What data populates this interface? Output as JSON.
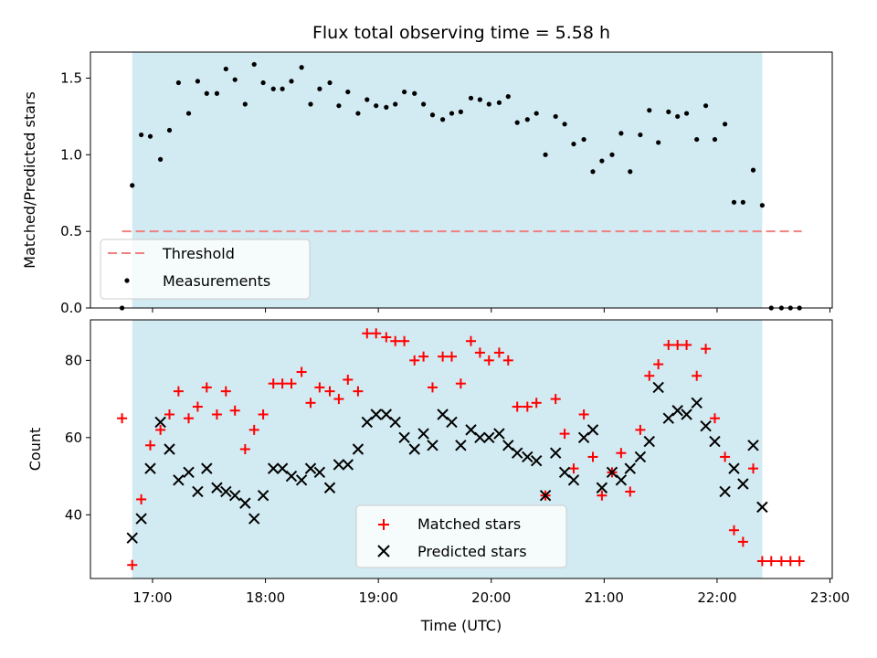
{
  "chart_data": [
    {
      "type": "scatter",
      "title": "Flux total observing time = 5.58 h",
      "xlabel": "",
      "ylabel": "Matched/Predicted stars",
      "xlim": [
        16.45,
        23.02
      ],
      "ylim": [
        0.0,
        1.67
      ],
      "yticks": [
        0.0,
        0.5,
        1.0,
        1.5
      ],
      "yticklabels": [
        "0.0",
        "0.5",
        "1.0",
        "1.5"
      ],
      "xticks": [
        17,
        18,
        19,
        20,
        21,
        22,
        23
      ],
      "shaded_interval": [
        16.82,
        22.4
      ],
      "colors": {
        "shade": "#add8e6",
        "threshold": "#f08080",
        "points": "#000000"
      },
      "threshold": {
        "name": "Threshold",
        "value": 0.5,
        "x_range": [
          16.73,
          22.75
        ]
      },
      "legend": {
        "position": "lower-left",
        "entries": [
          "Threshold",
          "Measurements"
        ]
      },
      "series": [
        {
          "name": "Measurements",
          "x": [
            16.73,
            16.82,
            16.9,
            16.98,
            17.07,
            17.15,
            17.23,
            17.32,
            17.4,
            17.48,
            17.57,
            17.65,
            17.73,
            17.82,
            17.9,
            17.98,
            18.07,
            18.15,
            18.23,
            18.32,
            18.4,
            18.48,
            18.57,
            18.65,
            18.73,
            18.82,
            18.9,
            18.98,
            19.07,
            19.15,
            19.23,
            19.32,
            19.4,
            19.48,
            19.57,
            19.65,
            19.73,
            19.82,
            19.9,
            19.98,
            20.07,
            20.15,
            20.23,
            20.32,
            20.4,
            20.48,
            20.57,
            20.65,
            20.73,
            20.82,
            20.9,
            20.98,
            21.07,
            21.15,
            21.23,
            21.32,
            21.4,
            21.48,
            21.57,
            21.65,
            21.73,
            21.82,
            21.9,
            21.98,
            22.07,
            22.15,
            22.23,
            22.32,
            22.4,
            22.48,
            22.57,
            22.65,
            22.73
          ],
          "y": [
            0.0,
            0.8,
            1.13,
            1.12,
            0.97,
            1.16,
            1.47,
            1.27,
            1.48,
            1.4,
            1.4,
            1.56,
            1.49,
            1.33,
            1.59,
            1.47,
            1.43,
            1.43,
            1.48,
            1.57,
            1.33,
            1.43,
            1.47,
            1.32,
            1.41,
            1.27,
            1.36,
            1.32,
            1.31,
            1.33,
            1.41,
            1.4,
            1.33,
            1.26,
            1.23,
            1.27,
            1.28,
            1.37,
            1.36,
            1.33,
            1.34,
            1.38,
            1.21,
            1.23,
            1.27,
            1.0,
            1.25,
            1.2,
            1.07,
            1.1,
            0.89,
            0.96,
            1.0,
            1.14,
            0.89,
            1.13,
            1.29,
            1.08,
            1.28,
            1.25,
            1.27,
            1.1,
            1.32,
            1.1,
            1.2,
            0.69,
            0.69,
            0.9,
            0.67,
            0.0,
            0.0,
            0.0,
            0.0
          ]
        }
      ]
    },
    {
      "type": "scatter",
      "title": "",
      "xlabel": "Time (UTC)",
      "ylabel": "Count",
      "xlim": [
        16.45,
        23.02
      ],
      "ylim": [
        23.5,
        90.5
      ],
      "yticks": [
        40,
        60,
        80
      ],
      "yticklabels": [
        "40",
        "60",
        "80"
      ],
      "xticks": [
        17,
        18,
        19,
        20,
        21,
        22,
        23
      ],
      "xticklabels": [
        "17:00",
        "18:00",
        "19:00",
        "20:00",
        "21:00",
        "22:00",
        "23:00"
      ],
      "shaded_interval": [
        16.82,
        22.4
      ],
      "colors": {
        "shade": "#add8e6",
        "matched": "#ff0000",
        "predicted": "#000000"
      },
      "legend": {
        "position": "bottom-center",
        "entries": [
          "Matched stars",
          "Predicted stars"
        ]
      },
      "series": [
        {
          "name": "Matched stars",
          "marker": "plus",
          "x": [
            16.73,
            16.82,
            16.9,
            16.98,
            17.07,
            17.15,
            17.23,
            17.32,
            17.4,
            17.48,
            17.57,
            17.65,
            17.73,
            17.82,
            17.9,
            17.98,
            18.07,
            18.15,
            18.23,
            18.32,
            18.4,
            18.48,
            18.57,
            18.65,
            18.73,
            18.82,
            18.9,
            18.98,
            19.07,
            19.15,
            19.23,
            19.32,
            19.4,
            19.48,
            19.57,
            19.65,
            19.73,
            19.82,
            19.9,
            19.98,
            20.07,
            20.15,
            20.23,
            20.32,
            20.4,
            20.48,
            20.57,
            20.65,
            20.73,
            20.82,
            20.9,
            20.98,
            21.07,
            21.15,
            21.23,
            21.32,
            21.4,
            21.48,
            21.57,
            21.65,
            21.73,
            21.82,
            21.9,
            21.98,
            22.07,
            22.15,
            22.23,
            22.32,
            22.4,
            22.48,
            22.57,
            22.65,
            22.73
          ],
          "y": [
            65,
            27,
            44,
            58,
            62,
            66,
            72,
            65,
            68,
            73,
            66,
            72,
            67,
            57,
            62,
            66,
            74,
            74,
            74,
            77,
            69,
            73,
            72,
            70,
            75,
            72,
            87,
            87,
            86,
            85,
            85,
            80,
            81,
            73,
            81,
            81,
            74,
            85,
            82,
            80,
            82,
            80,
            68,
            68,
            69,
            45,
            70,
            61,
            52,
            66,
            55,
            45,
            51,
            56,
            46,
            62,
            76,
            79,
            84,
            84,
            84,
            76,
            83,
            65,
            55,
            36,
            33,
            52,
            28,
            28,
            28,
            28,
            28
          ]
        },
        {
          "name": "Predicted stars",
          "marker": "x",
          "x": [
            16.82,
            16.9,
            16.98,
            17.07,
            17.15,
            17.23,
            17.32,
            17.4,
            17.48,
            17.57,
            17.65,
            17.73,
            17.82,
            17.9,
            17.98,
            18.07,
            18.15,
            18.23,
            18.32,
            18.4,
            18.48,
            18.57,
            18.65,
            18.73,
            18.82,
            18.9,
            18.98,
            19.07,
            19.15,
            19.23,
            19.32,
            19.4,
            19.48,
            19.57,
            19.65,
            19.73,
            19.82,
            19.9,
            19.98,
            20.07,
            20.15,
            20.23,
            20.32,
            20.4,
            20.48,
            20.57,
            20.65,
            20.73,
            20.82,
            20.9,
            20.98,
            21.07,
            21.15,
            21.23,
            21.32,
            21.4,
            21.48,
            21.57,
            21.65,
            21.73,
            21.82,
            21.9,
            21.98,
            22.07,
            22.15,
            22.23,
            22.32,
            22.4
          ],
          "y": [
            34,
            39,
            52,
            64,
            57,
            49,
            51,
            46,
            52,
            47,
            46,
            45,
            43,
            39,
            45,
            52,
            52,
            50,
            49,
            52,
            51,
            47,
            53,
            53,
            57,
            64,
            66,
            66,
            64,
            60,
            57,
            61,
            58,
            66,
            64,
            58,
            62,
            60,
            60,
            61,
            58,
            56,
            55,
            54,
            45,
            56,
            51,
            49,
            60,
            62,
            47,
            51,
            49,
            52,
            55,
            59,
            73,
            65,
            67,
            66,
            69,
            63,
            59,
            46,
            52,
            48,
            58,
            42
          ]
        }
      ]
    }
  ]
}
